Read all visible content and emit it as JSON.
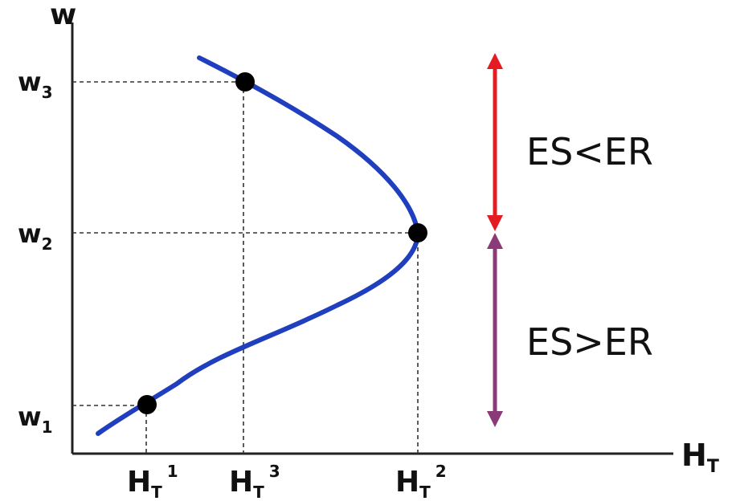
{
  "axes": {
    "y_label": "w",
    "x_label_main": "H",
    "x_label_sub": "T"
  },
  "y_ticks": [
    {
      "main": "w",
      "sub": "3"
    },
    {
      "main": "w",
      "sub": "2"
    },
    {
      "main": "w",
      "sub": "1"
    }
  ],
  "x_ticks": [
    {
      "main": "H",
      "sub": "T",
      "sup": "1"
    },
    {
      "main": "H",
      "sub": "T",
      "sup": "3"
    },
    {
      "main": "H",
      "sub": "T",
      "sup": "2"
    }
  ],
  "regions": [
    {
      "label": "ES<ER",
      "arrow_color": "#e51b24"
    },
    {
      "label": "ES>ER",
      "arrow_color": "#8b3a78"
    }
  ],
  "curve_color": "#1f3fbf"
}
